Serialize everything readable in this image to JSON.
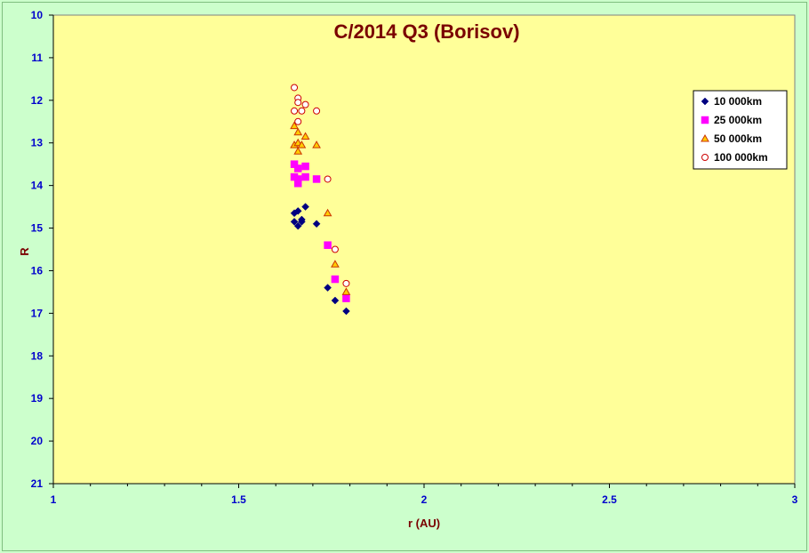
{
  "chart_data": {
    "type": "scatter",
    "title": "C/2014 Q3 (Borisov)",
    "xlabel": "r (AU)",
    "ylabel": "R",
    "xlim": [
      1,
      3
    ],
    "ylim": [
      21,
      10
    ],
    "y_reversed": true,
    "x_ticks": [
      "1",
      "1.5",
      "2",
      "2.5",
      "3"
    ],
    "y_ticks": [
      "10",
      "11",
      "12",
      "13",
      "14",
      "15",
      "16",
      "17",
      "18",
      "19",
      "20",
      "21"
    ],
    "legend_position": "top-right",
    "grid": false,
    "series": [
      {
        "name": "10 000km",
        "marker": "diamond",
        "color": "#000080",
        "points": [
          [
            1.65,
            14.65
          ],
          [
            1.66,
            14.6
          ],
          [
            1.67,
            14.8
          ],
          [
            1.68,
            14.5
          ],
          [
            1.65,
            14.85
          ],
          [
            1.66,
            14.95
          ],
          [
            1.67,
            14.85
          ],
          [
            1.71,
            14.9
          ],
          [
            1.74,
            16.4
          ],
          [
            1.76,
            16.7
          ],
          [
            1.79,
            16.95
          ]
        ]
      },
      {
        "name": "25 000km",
        "marker": "square",
        "color": "#ff00ff",
        "points": [
          [
            1.65,
            13.5
          ],
          [
            1.66,
            13.6
          ],
          [
            1.68,
            13.55
          ],
          [
            1.65,
            13.8
          ],
          [
            1.66,
            13.85
          ],
          [
            1.68,
            13.8
          ],
          [
            1.66,
            13.95
          ],
          [
            1.71,
            13.85
          ],
          [
            1.74,
            15.4
          ],
          [
            1.76,
            16.2
          ],
          [
            1.79,
            16.65
          ]
        ]
      },
      {
        "name": "50 000km",
        "marker": "triangle",
        "color": "#cc3300",
        "fill": "#ffcc00",
        "points": [
          [
            1.65,
            12.6
          ],
          [
            1.66,
            12.75
          ],
          [
            1.68,
            12.85
          ],
          [
            1.65,
            13.05
          ],
          [
            1.66,
            13.0
          ],
          [
            1.67,
            13.05
          ],
          [
            1.66,
            13.2
          ],
          [
            1.71,
            13.05
          ],
          [
            1.74,
            14.65
          ],
          [
            1.76,
            15.85
          ],
          [
            1.79,
            16.5
          ]
        ]
      },
      {
        "name": "100 000km",
        "marker": "circle",
        "color": "#cc0000",
        "fill": "#ffffff",
        "points": [
          [
            1.65,
            11.7
          ],
          [
            1.66,
            11.95
          ],
          [
            1.66,
            12.05
          ],
          [
            1.68,
            12.1
          ],
          [
            1.65,
            12.25
          ],
          [
            1.67,
            12.25
          ],
          [
            1.66,
            12.5
          ],
          [
            1.71,
            12.25
          ],
          [
            1.74,
            13.85
          ],
          [
            1.76,
            15.5
          ],
          [
            1.79,
            16.3
          ]
        ]
      }
    ]
  }
}
